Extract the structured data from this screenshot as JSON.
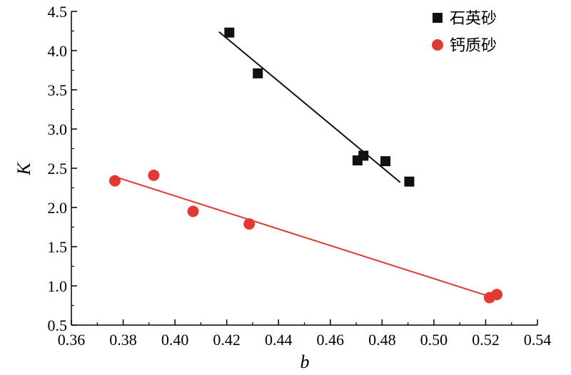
{
  "chart_data": {
    "type": "scatter",
    "xlabel": "b",
    "ylabel": "K",
    "xlim": [
      0.36,
      0.54
    ],
    "ylim": [
      0.5,
      4.5
    ],
    "xticks": [
      "0.36",
      "0.38",
      "0.40",
      "0.42",
      "0.44",
      "0.46",
      "0.48",
      "0.50",
      "0.52",
      "0.54"
    ],
    "yticks": [
      "0.5",
      "1.0",
      "1.5",
      "2.0",
      "2.5",
      "3.0",
      "3.5",
      "4.0",
      "4.5"
    ],
    "legend_position": "top-right",
    "grid": false,
    "series": [
      {
        "name": "石英砂",
        "marker": "square",
        "color": "#111111",
        "points": [
          {
            "x": 0.421,
            "y": 4.23
          },
          {
            "x": 0.432,
            "y": 3.71
          },
          {
            "x": 0.4705,
            "y": 2.6
          },
          {
            "x": 0.4728,
            "y": 2.66
          },
          {
            "x": 0.4813,
            "y": 2.59
          },
          {
            "x": 0.4905,
            "y": 2.33
          }
        ],
        "fit_line": {
          "x": [
            0.417,
            0.487
          ],
          "y": [
            4.24,
            2.32
          ]
        }
      },
      {
        "name": "钙质砂",
        "marker": "circle",
        "color": "#e03a32",
        "points": [
          {
            "x": 0.3768,
            "y": 2.34
          },
          {
            "x": 0.3918,
            "y": 2.41
          },
          {
            "x": 0.407,
            "y": 1.95
          },
          {
            "x": 0.4287,
            "y": 1.79
          },
          {
            "x": 0.5215,
            "y": 0.85
          },
          {
            "x": 0.5243,
            "y": 0.89
          }
        ],
        "fit_line": {
          "x": [
            0.377,
            0.522
          ],
          "y": [
            2.39,
            0.86
          ]
        }
      }
    ]
  }
}
